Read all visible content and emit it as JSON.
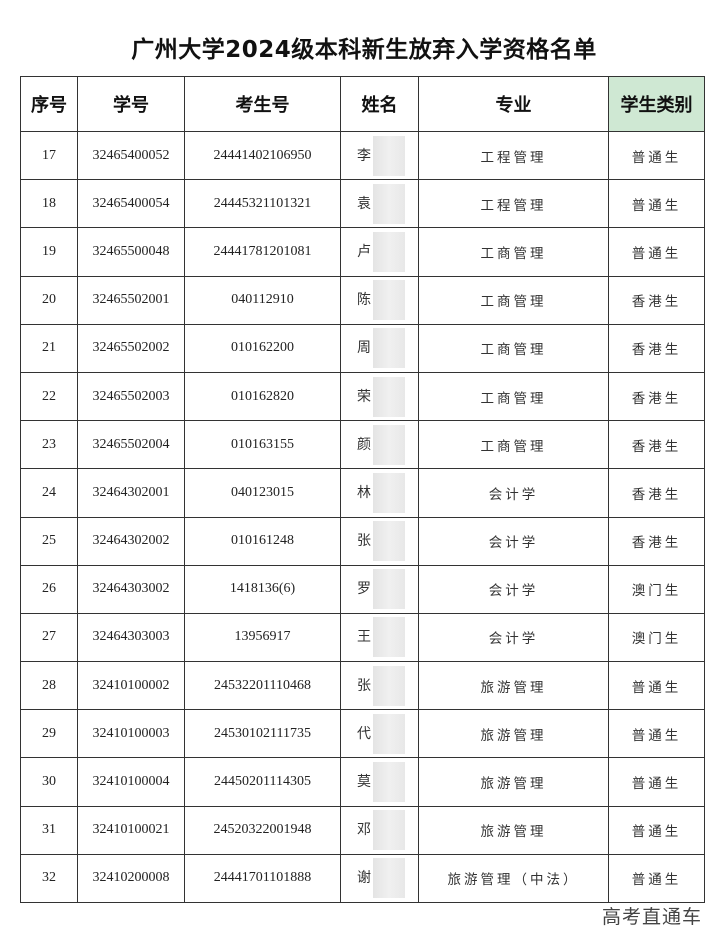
{
  "title": "广州大学2024级本科新生放弃入学资格名单",
  "headers": [
    "序号",
    "学号",
    "考生号",
    "姓名",
    "专业",
    "学生类别"
  ],
  "header_highlight_color": "#cfe8d3",
  "rows": [
    {
      "no": "17",
      "sid": "32465400052",
      "eid": "24441402106950",
      "name": "李",
      "major": "工程管理",
      "type": "普通生"
    },
    {
      "no": "18",
      "sid": "32465400054",
      "eid": "24445321101321",
      "name": "袁",
      "major": "工程管理",
      "type": "普通生"
    },
    {
      "no": "19",
      "sid": "32465500048",
      "eid": "24441781201081",
      "name": "卢",
      "major": "工商管理",
      "type": "普通生"
    },
    {
      "no": "20",
      "sid": "32465502001",
      "eid": "040112910",
      "name": "陈",
      "major": "工商管理",
      "type": "香港生"
    },
    {
      "no": "21",
      "sid": "32465502002",
      "eid": "010162200",
      "name": "周",
      "major": "工商管理",
      "type": "香港生"
    },
    {
      "no": "22",
      "sid": "32465502003",
      "eid": "010162820",
      "name": "荣",
      "major": "工商管理",
      "type": "香港生"
    },
    {
      "no": "23",
      "sid": "32465502004",
      "eid": "010163155",
      "name": "颜",
      "major": "工商管理",
      "type": "香港生"
    },
    {
      "no": "24",
      "sid": "32464302001",
      "eid": "040123015",
      "name": "林",
      "major": "会计学",
      "type": "香港生"
    },
    {
      "no": "25",
      "sid": "32464302002",
      "eid": "010161248",
      "name": "张",
      "major": "会计学",
      "type": "香港生"
    },
    {
      "no": "26",
      "sid": "32464303002",
      "eid": "1418136(6)",
      "name": "罗",
      "major": "会计学",
      "type": "澳门生"
    },
    {
      "no": "27",
      "sid": "32464303003",
      "eid": "13956917",
      "name": "王",
      "major": "会计学",
      "type": "澳门生"
    },
    {
      "no": "28",
      "sid": "32410100002",
      "eid": "24532201110468",
      "name": "张",
      "major": "旅游管理",
      "type": "普通生"
    },
    {
      "no": "29",
      "sid": "32410100003",
      "eid": "24530102111735",
      "name": "代",
      "major": "旅游管理",
      "type": "普通生"
    },
    {
      "no": "30",
      "sid": "32410100004",
      "eid": "24450201114305",
      "name": "莫",
      "major": "旅游管理",
      "type": "普通生"
    },
    {
      "no": "31",
      "sid": "32410100021",
      "eid": "24520322001948",
      "name": "邓",
      "major": "旅游管理",
      "type": "普通生"
    },
    {
      "no": "32",
      "sid": "32410200008",
      "eid": "24441701101888",
      "name": "谢",
      "major": "旅游管理（中法）",
      "type": "普通生"
    }
  ],
  "watermark": "高考直通车"
}
